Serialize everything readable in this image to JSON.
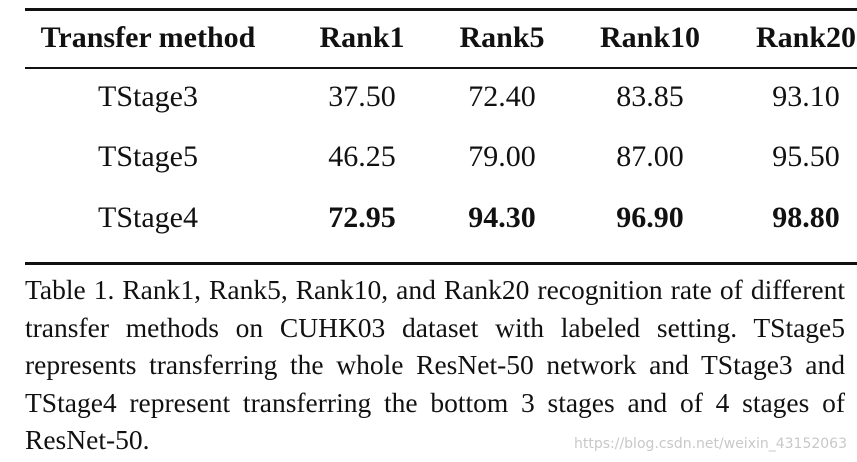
{
  "table": {
    "header": [
      "Transfer method",
      "Rank1",
      "Rank5",
      "Rank10",
      "Rank20"
    ],
    "rows": [
      [
        "TStage3",
        "37.50",
        "72.40",
        "83.85",
        "93.10"
      ],
      [
        "TStage5",
        "46.25",
        "79.00",
        "87.00",
        "95.50"
      ],
      [
        "TStage4",
        "72.95",
        "94.30",
        "96.90",
        "98.80"
      ]
    ]
  },
  "caption": "Table 1. Rank1, Rank5, Rank10, and Rank20 recognition rate of different transfer methods on CUHK03 dataset with labeled setting.  TStage5 represents transferring the whole ResNet-50 network and TStage3 and TStage4 represent transferring the bottom 3 stages and of 4 stages of ResNet-50.",
  "watermark": "https://blog.csdn.net/weixin_43152063"
}
